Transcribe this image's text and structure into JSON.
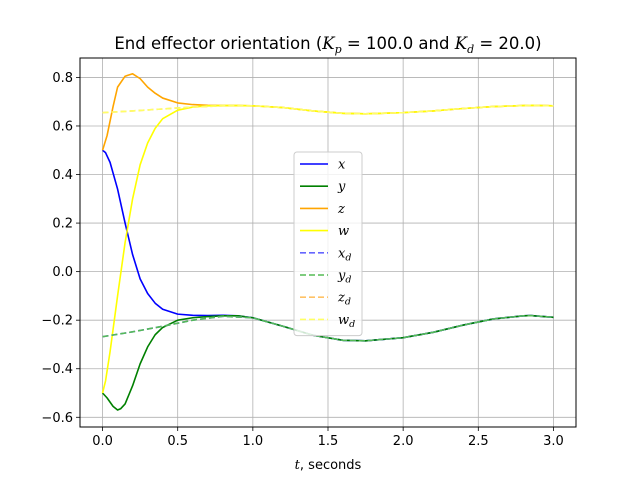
{
  "chart_data": {
    "type": "line",
    "title": "End effector orientation (K_p = 100.0 and K_d = 20.0)",
    "title_parts": {
      "prefix": "End effector orientation (",
      "kp_symbol": "K",
      "kp_sub": "p",
      "kp_value": " = 100.0 and ",
      "kd_symbol": "K",
      "kd_sub": "d",
      "kd_value": " = 20.0)"
    },
    "xlabel": "t, seconds",
    "xlabel_parts": {
      "var": "t",
      "rest": ", seconds"
    },
    "ylabel": "",
    "xlim": [
      -0.15,
      3.15
    ],
    "ylim": [
      -0.64,
      0.88
    ],
    "xticks": [
      0.0,
      0.5,
      1.0,
      1.5,
      2.0,
      2.5,
      3.0
    ],
    "xtick_labels": [
      "0.0",
      "0.5",
      "1.0",
      "1.5",
      "2.0",
      "2.5",
      "3.0"
    ],
    "yticks": [
      -0.6,
      -0.4,
      -0.2,
      0.0,
      0.2,
      0.4,
      0.6,
      0.8
    ],
    "ytick_labels": [
      "−0.6",
      "−0.4",
      "−0.2",
      "0.0",
      "0.2",
      "0.4",
      "0.6",
      "0.8"
    ],
    "grid": true,
    "legend_position": "center",
    "series": [
      {
        "name": "x",
        "sub": "",
        "color": "#0000ff",
        "style": "solid",
        "x": [
          0,
          0.02,
          0.05,
          0.1,
          0.15,
          0.2,
          0.25,
          0.3,
          0.35,
          0.4,
          0.5,
          0.6,
          0.7,
          0.8,
          0.9,
          1.0,
          1.2,
          1.4,
          1.6,
          1.75,
          2.0,
          2.2,
          2.4,
          2.6,
          2.8,
          2.85,
          3.0
        ],
        "y": [
          0.5,
          0.49,
          0.45,
          0.34,
          0.2,
          0.07,
          -0.03,
          -0.09,
          -0.13,
          -0.155,
          -0.175,
          -0.18,
          -0.181,
          -0.18,
          -0.182,
          -0.19,
          -0.225,
          -0.262,
          -0.283,
          -0.285,
          -0.272,
          -0.25,
          -0.22,
          -0.195,
          -0.182,
          -0.181,
          -0.188
        ]
      },
      {
        "name": "y",
        "sub": "",
        "color": "#008000",
        "style": "solid",
        "x": [
          0,
          0.03,
          0.07,
          0.1,
          0.12,
          0.15,
          0.2,
          0.25,
          0.3,
          0.35,
          0.4,
          0.5,
          0.6,
          0.7,
          0.8,
          0.9,
          1.0,
          1.2,
          1.4,
          1.6,
          1.75,
          2.0,
          2.2,
          2.4,
          2.6,
          2.8,
          2.85,
          3.0
        ],
        "y": [
          -0.5,
          -0.52,
          -0.555,
          -0.57,
          -0.565,
          -0.545,
          -0.47,
          -0.38,
          -0.31,
          -0.26,
          -0.23,
          -0.2,
          -0.19,
          -0.185,
          -0.182,
          -0.182,
          -0.19,
          -0.225,
          -0.262,
          -0.283,
          -0.285,
          -0.272,
          -0.25,
          -0.22,
          -0.195,
          -0.182,
          -0.181,
          -0.188
        ]
      },
      {
        "name": "z",
        "sub": "",
        "color": "#ffa500",
        "style": "solid",
        "x": [
          0,
          0.03,
          0.07,
          0.1,
          0.15,
          0.2,
          0.25,
          0.3,
          0.35,
          0.4,
          0.5,
          0.6,
          0.7,
          0.8,
          0.9,
          1.0,
          1.2,
          1.4,
          1.6,
          1.75,
          2.0,
          2.2,
          2.4,
          2.6,
          2.8,
          2.85,
          3.0
        ],
        "y": [
          0.5,
          0.56,
          0.68,
          0.76,
          0.805,
          0.815,
          0.795,
          0.76,
          0.735,
          0.715,
          0.695,
          0.688,
          0.685,
          0.684,
          0.684,
          0.683,
          0.676,
          0.662,
          0.652,
          0.65,
          0.655,
          0.662,
          0.672,
          0.68,
          0.684,
          0.685,
          0.683
        ]
      },
      {
        "name": "w",
        "sub": "",
        "color": "#ffff00",
        "style": "solid",
        "x": [
          0,
          0.02,
          0.05,
          0.1,
          0.15,
          0.2,
          0.25,
          0.3,
          0.35,
          0.4,
          0.5,
          0.6,
          0.7,
          0.8,
          0.9,
          1.0,
          1.2,
          1.4,
          1.6,
          1.75,
          2.0,
          2.2,
          2.4,
          2.6,
          2.8,
          2.85,
          3.0
        ],
        "y": [
          -0.5,
          -0.45,
          -0.33,
          -0.1,
          0.12,
          0.3,
          0.44,
          0.53,
          0.59,
          0.63,
          0.665,
          0.678,
          0.683,
          0.684,
          0.684,
          0.683,
          0.676,
          0.662,
          0.652,
          0.65,
          0.655,
          0.662,
          0.672,
          0.68,
          0.684,
          0.685,
          0.683
        ]
      },
      {
        "name": "x",
        "sub": "d",
        "color": "#6666ff",
        "style": "dashed",
        "x": [
          0,
          0.2,
          0.4,
          0.6,
          0.8,
          1.0,
          1.2,
          1.4,
          1.6,
          1.75,
          2.0,
          2.2,
          2.4,
          2.6,
          2.8,
          2.85,
          3.0
        ],
        "y": [
          -0.268,
          -0.248,
          -0.225,
          -0.2,
          -0.184,
          -0.19,
          -0.225,
          -0.262,
          -0.283,
          -0.285,
          -0.272,
          -0.25,
          -0.22,
          -0.195,
          -0.182,
          -0.181,
          -0.188
        ]
      },
      {
        "name": "y",
        "sub": "d",
        "color": "#55bb55",
        "style": "dashed",
        "x": [
          0,
          0.2,
          0.4,
          0.6,
          0.8,
          1.0,
          1.2,
          1.4,
          1.6,
          1.75,
          2.0,
          2.2,
          2.4,
          2.6,
          2.8,
          2.85,
          3.0
        ],
        "y": [
          -0.268,
          -0.248,
          -0.225,
          -0.2,
          -0.184,
          -0.19,
          -0.225,
          -0.262,
          -0.283,
          -0.285,
          -0.272,
          -0.25,
          -0.22,
          -0.195,
          -0.182,
          -0.181,
          -0.188
        ]
      },
      {
        "name": "z",
        "sub": "d",
        "color": "#ffc266",
        "style": "dashed",
        "x": [
          0,
          0.2,
          0.4,
          0.6,
          0.8,
          1.0,
          1.2,
          1.4,
          1.6,
          1.75,
          2.0,
          2.2,
          2.4,
          2.6,
          2.8,
          2.85,
          3.0
        ],
        "y": [
          0.655,
          0.662,
          0.67,
          0.678,
          0.683,
          0.683,
          0.676,
          0.662,
          0.652,
          0.65,
          0.655,
          0.662,
          0.672,
          0.68,
          0.684,
          0.685,
          0.683
        ]
      },
      {
        "name": "w",
        "sub": "d",
        "color": "#ffff66",
        "style": "dashed",
        "x": [
          0,
          0.2,
          0.4,
          0.6,
          0.8,
          1.0,
          1.2,
          1.4,
          1.6,
          1.75,
          2.0,
          2.2,
          2.4,
          2.6,
          2.8,
          2.85,
          3.0
        ],
        "y": [
          0.655,
          0.662,
          0.67,
          0.678,
          0.683,
          0.683,
          0.676,
          0.662,
          0.652,
          0.65,
          0.655,
          0.662,
          0.672,
          0.68,
          0.684,
          0.685,
          0.683
        ]
      }
    ]
  }
}
